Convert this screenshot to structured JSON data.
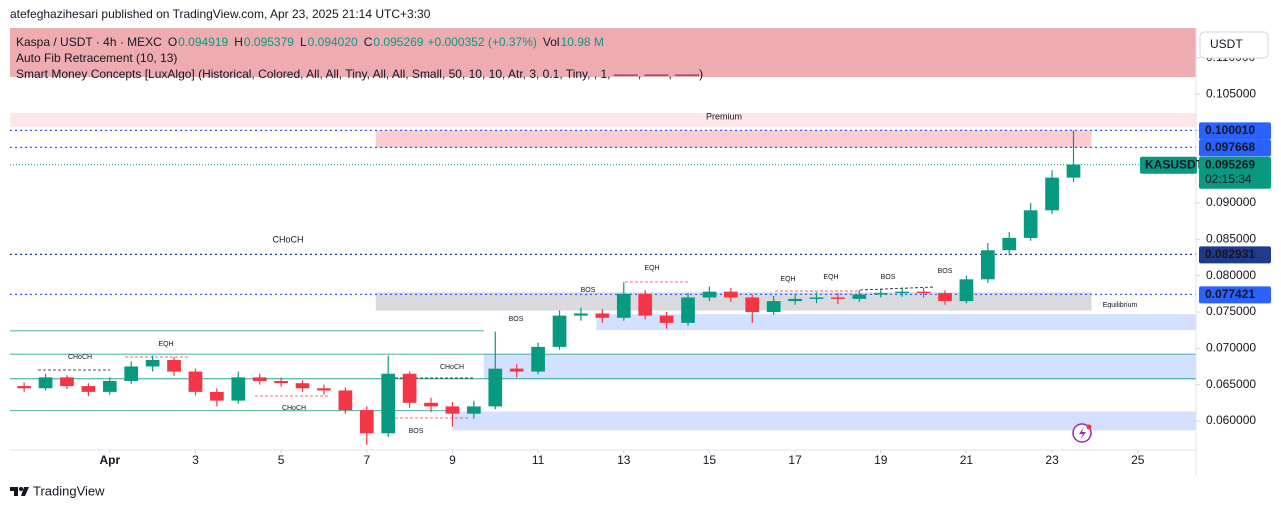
{
  "header": {
    "publisher": "atefeghazihesari published on TradingView.com, Apr 23, 2025 21:14 UTC+3:30"
  },
  "footer": {
    "brand": "TradingView"
  },
  "chart_data": {
    "type": "candlestick",
    "legend": {
      "symbol": "Kaspa / USDT · 4h · MEXC",
      "o_label": "O",
      "open": 0.094919,
      "h_label": "H",
      "high": 0.095379,
      "l_label": "L",
      "low": {
        "value": 0.09402,
        "label": "0.094020"
      },
      "c_label": "C",
      "close": 0.095269,
      "change": "+0.000352 (+0.37%)",
      "vol_label": "Vol",
      "volume": "10.98 M",
      "indicators": [
        "Auto Fib Retracement (10, 13)",
        "Smart Money Concepts [LuxAlgo] (Historical, Colored, All, All, Tiny, All, All, Small, 50, 10, 10, Atr, 3, 0.1, Tiny, , 1, ——, ——, ——)"
      ]
    },
    "currency": "USDT",
    "up_color": "#089981",
    "down_color": "#f23645",
    "x": [
      -1.0,
      -0.5,
      0,
      0.5,
      1.0,
      1.5,
      2.0,
      2.5,
      3.0,
      3.5,
      4.0,
      4.5,
      5.0,
      5.5,
      6.0,
      6.5,
      7.0,
      7.5,
      8.0,
      8.5,
      9.0,
      9.5,
      10.0,
      10.5,
      11.0,
      11.5,
      12.0,
      12.5,
      13.0,
      13.5,
      14.0,
      14.5,
      15.0,
      15.5,
      16.0,
      16.5,
      17.0,
      17.5,
      18.0,
      18.5,
      19.0,
      19.5,
      20.0,
      20.5,
      21.0,
      21.5,
      22.0,
      22.5,
      23.0,
      23.5
    ],
    "open": [
      0.0648,
      0.0645,
      0.066,
      0.0648,
      0.064,
      0.0655,
      0.0675,
      0.0684,
      0.0668,
      0.064,
      0.0628,
      0.066,
      0.0655,
      0.0652,
      0.0645,
      0.0642,
      0.0615,
      0.0583,
      0.0665,
      0.0625,
      0.062,
      0.061,
      0.062,
      0.0672,
      0.0668,
      0.0702,
      0.0745,
      0.0748,
      0.0742,
      0.0775,
      0.0745,
      0.0735,
      0.077,
      0.0778,
      0.077,
      0.075,
      0.0765,
      0.0768,
      0.077,
      0.0768,
      0.0774,
      0.0776,
      0.0778,
      0.0776,
      0.0765,
      0.0795,
      0.0835,
      0.0852,
      0.089,
      0.0935
    ],
    "high": [
      0.0653,
      0.0665,
      0.0663,
      0.0652,
      0.066,
      0.0682,
      0.069,
      0.0688,
      0.0672,
      0.0645,
      0.0668,
      0.0665,
      0.066,
      0.0656,
      0.065,
      0.0646,
      0.062,
      0.069,
      0.0668,
      0.0632,
      0.0626,
      0.0628,
      0.0723,
      0.0678,
      0.0708,
      0.0752,
      0.0756,
      0.0754,
      0.0791,
      0.078,
      0.075,
      0.0776,
      0.0785,
      0.0783,
      0.0774,
      0.0772,
      0.0775,
      0.0777,
      0.0776,
      0.078,
      0.0781,
      0.0784,
      0.0783,
      0.078,
      0.08,
      0.0845,
      0.086,
      0.09,
      0.0945,
      0.1
    ],
    "low": [
      0.064,
      0.0642,
      0.0644,
      0.0634,
      0.0636,
      0.0651,
      0.0668,
      0.0662,
      0.0635,
      0.062,
      0.0624,
      0.065,
      0.0647,
      0.064,
      0.0636,
      0.061,
      0.0567,
      0.0578,
      0.0618,
      0.0612,
      0.0592,
      0.0603,
      0.0616,
      0.066,
      0.0664,
      0.0698,
      0.0738,
      0.0735,
      0.0738,
      0.074,
      0.0727,
      0.0731,
      0.0765,
      0.0764,
      0.0735,
      0.0746,
      0.076,
      0.0762,
      0.0761,
      0.0764,
      0.077,
      0.0771,
      0.077,
      0.076,
      0.0762,
      0.079,
      0.0828,
      0.0848,
      0.0885,
      0.0929
    ],
    "close": [
      0.0645,
      0.066,
      0.0648,
      0.064,
      0.0655,
      0.0675,
      0.0684,
      0.0668,
      0.064,
      0.0628,
      0.066,
      0.0655,
      0.0652,
      0.0645,
      0.0642,
      0.0615,
      0.0583,
      0.0665,
      0.0625,
      0.062,
      0.061,
      0.062,
      0.0672,
      0.0668,
      0.0702,
      0.0745,
      0.0748,
      0.0742,
      0.0775,
      0.0745,
      0.0735,
      0.077,
      0.0778,
      0.077,
      0.075,
      0.0765,
      0.0768,
      0.077,
      0.0768,
      0.0774,
      0.0776,
      0.0778,
      0.0776,
      0.0765,
      0.0795,
      0.0835,
      0.0852,
      0.089,
      0.0935,
      0.0953
    ],
    "xlim": [
      -1.33,
      26.36
    ],
    "xticks": [
      {
        "value": 1,
        "label": "Apr"
      },
      3,
      5,
      7,
      9,
      11,
      13,
      15,
      17,
      19,
      21,
      23,
      25
    ],
    "ylim": [
      0.056,
      0.1141
    ],
    "yticks": [
      {
        "value": 0.06,
        "label": "0.060000"
      },
      {
        "value": 0.065,
        "label": "0.065000"
      },
      {
        "value": 0.07,
        "label": "0.070000"
      },
      {
        "value": 0.075,
        "label": "0.075000"
      },
      {
        "value": 0.08,
        "label": "0.080000"
      },
      {
        "value": 0.085,
        "label": "0.085000"
      },
      {
        "value": 0.09,
        "label": "0.090000"
      },
      {
        "value": 0.095,
        "label": "0.095000"
      },
      {
        "value": 0.1,
        "label": "0.100000"
      },
      {
        "value": 0.105,
        "label": "0.105000"
      },
      {
        "value": 0.11,
        "label": "0.110000"
      }
    ],
    "grid": false,
    "zones": [
      {
        "y": [
          0.1024,
          0.1005
        ],
        "x": [
          -1.33,
          26.36
        ],
        "color": "rgba(242,54,69,0.12)"
      },
      {
        "y": [
          0.1,
          0.0976
        ],
        "x": [
          7.21,
          23.92
        ],
        "color": "rgba(242,54,69,0.25)"
      },
      {
        "y": [
          0.0777,
          0.0752
        ],
        "x": [
          7.21,
          23.92
        ],
        "color": "rgba(120,123,134,0.28)"
      },
      {
        "y": [
          0.0747,
          0.0725
        ],
        "x": [
          12.36,
          26.36
        ],
        "color": "rgba(41,98,255,0.2)"
      },
      {
        "y": [
          0.0692,
          0.0658
        ],
        "x": [
          9.73,
          26.36
        ],
        "color": "rgba(41,98,255,0.2)"
      },
      {
        "y": [
          0.0613,
          0.0587
        ],
        "x": [
          9.02,
          26.36
        ],
        "color": "rgba(41,98,255,0.2)"
      }
    ],
    "levels": [
      {
        "y": 0.0724,
        "x": [
          -1.33,
          9.73
        ],
        "color": "#089981"
      },
      {
        "y": 0.0692,
        "x": [
          -1.33,
          26.36
        ],
        "color": "#089981"
      },
      {
        "y": 0.0658,
        "x": [
          -1.33,
          26.36
        ],
        "color": "#089981"
      },
      {
        "y": 0.0614,
        "x": [
          -1.33,
          9.02
        ],
        "color": "#089981"
      }
    ],
    "price_lines": [
      {
        "value": 0.10001,
        "label": "0.100010",
        "color": "#2962ff"
      },
      {
        "value": 0.097668,
        "color": "#2962ff"
      },
      {
        "value": 0.082931,
        "color": "#1e3a8a"
      },
      {
        "value": 0.077421,
        "color": "#2962ff"
      }
    ],
    "last_price": {
      "symbol": "KASUSDT",
      "value": 0.095269,
      "countdown": "02:15:34",
      "color": "#089981"
    },
    "annotations": [
      "Premium",
      "CHoCH",
      "CHoCH",
      "EQH",
      "CHoCH",
      "CHoCH",
      "BOS",
      "BOS",
      "BOS",
      "EQH",
      "EQH",
      "EQH",
      "BOS",
      "BOS",
      "Equilibrium"
    ]
  }
}
